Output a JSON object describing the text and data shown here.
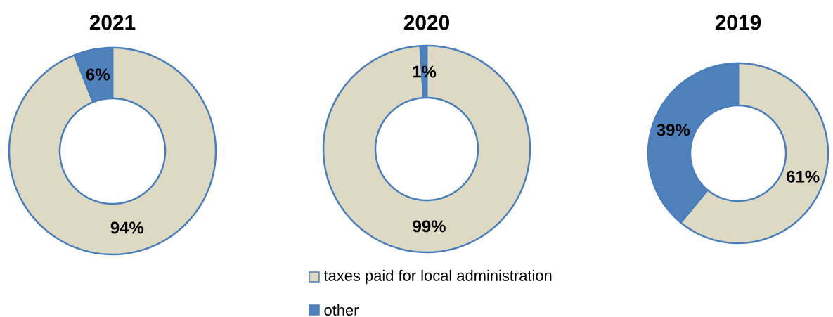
{
  "chart_data": [
    {
      "type": "donut",
      "title": "2021",
      "values": [
        94,
        6
      ],
      "colors": [
        "#ddd9c3",
        "#4f81bd"
      ],
      "value_labels": [
        "94%",
        "6%"
      ]
    },
    {
      "type": "donut",
      "title": "2020",
      "categories": [
        "taxes paid for local administration",
        "other"
      ],
      "values": [
        99,
        1
      ],
      "colors": [
        "#ddd9c3",
        "#4f81bd"
      ],
      "value_labels": [
        "99%",
        "1%"
      ],
      "legend": "bottom"
    },
    {
      "type": "donut",
      "title": "2019",
      "values": [
        61,
        39
      ],
      "colors": [
        "#ddd9c3",
        "#4f81bd"
      ],
      "value_labels": [
        "61%",
        "39%"
      ]
    }
  ]
}
